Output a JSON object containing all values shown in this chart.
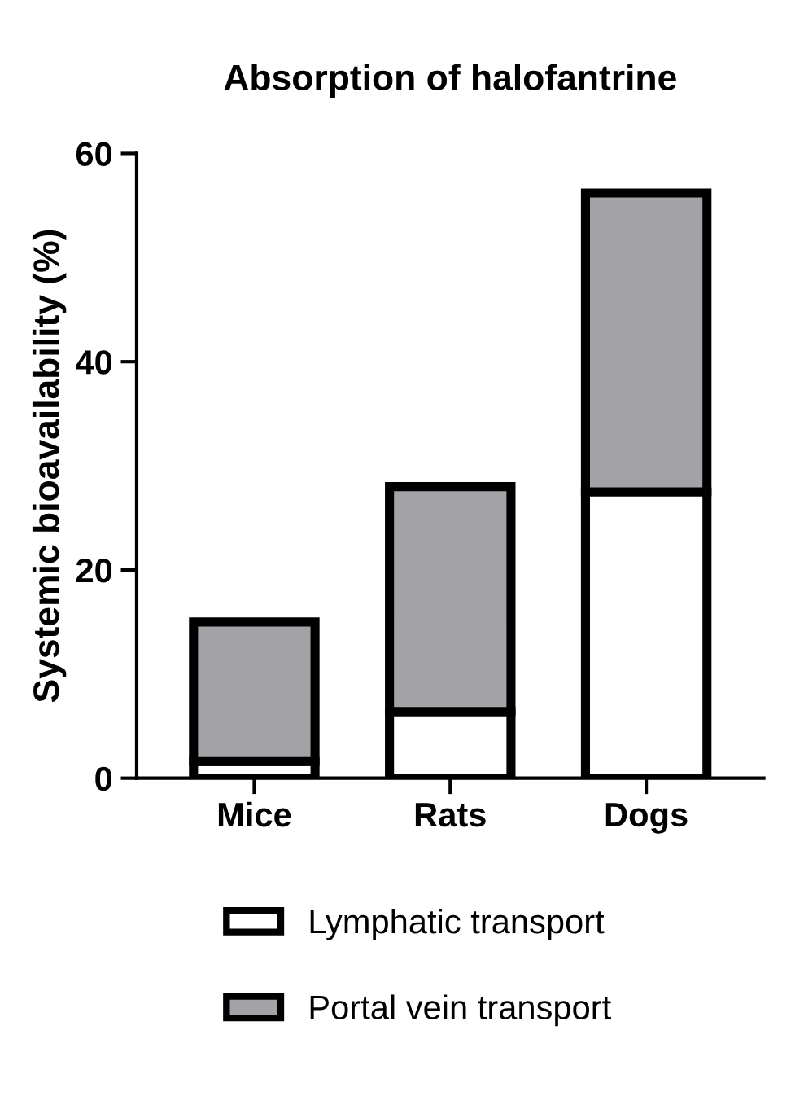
{
  "chart_data": {
    "type": "bar",
    "title": "Absorption of halofantrine",
    "ylabel": "Systemic bioavailability (%)",
    "categories": [
      "Mice",
      "Rats",
      "Dogs"
    ],
    "stacked": true,
    "series": [
      {
        "name": "Lymphatic transport",
        "color": "#ffffff",
        "values": [
          1.6,
          6.4,
          27.5
        ]
      },
      {
        "name": "Portal vein transport",
        "color": "#a3a2a7",
        "values": [
          13.4,
          21.6,
          28.7
        ]
      }
    ],
    "ylim": [
      0,
      60
    ],
    "yticks": [
      0,
      20,
      40,
      60
    ],
    "grid": false,
    "legend": "bottom"
  }
}
